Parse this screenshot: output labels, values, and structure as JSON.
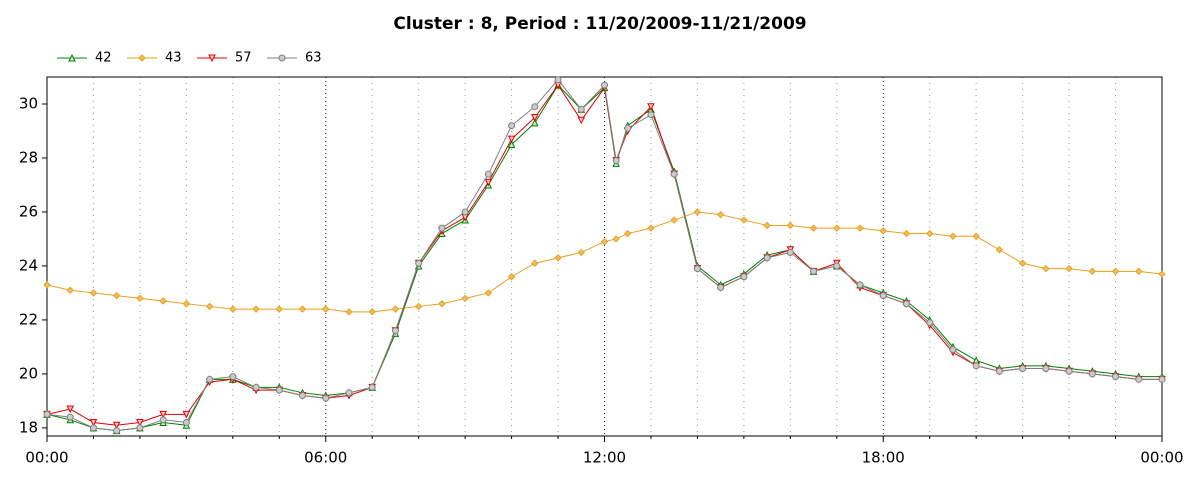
{
  "chart_data": {
    "type": "line",
    "title": "Cluster : 8, Period : 11/20/2009-11/21/2009",
    "x": [
      0,
      0.5,
      1,
      1.5,
      2,
      2.5,
      3,
      3.5,
      4,
      4.5,
      5,
      5.5,
      6,
      6.5,
      7,
      7.5,
      8,
      8.5,
      9,
      9.5,
      10,
      10.5,
      11,
      11.5,
      12,
      12.25,
      12.5,
      13,
      13.5,
      14,
      14.5,
      15,
      15.5,
      16,
      16.5,
      17,
      17.5,
      18,
      18.5,
      19,
      19.5,
      20,
      20.5,
      21,
      21.5,
      22,
      22.5,
      23,
      23.5,
      24
    ],
    "series": [
      {
        "name": "42",
        "color": "#008000",
        "marker": "triangle-up",
        "values": [
          18.5,
          18.3,
          18.0,
          17.9,
          18.0,
          18.2,
          18.1,
          19.8,
          19.8,
          19.5,
          19.5,
          19.3,
          19.2,
          19.3,
          19.5,
          21.5,
          24.0,
          25.2,
          25.7,
          27.0,
          28.5,
          29.3,
          30.7,
          29.8,
          30.6,
          27.8,
          29.2,
          29.8,
          27.5,
          24.0,
          23.3,
          23.7,
          24.4,
          24.6,
          23.8,
          24.0,
          23.3,
          23.0,
          22.7,
          22.0,
          21.0,
          20.5,
          20.2,
          20.3,
          20.3,
          20.2,
          20.1,
          20.0,
          19.9,
          19.9
        ]
      },
      {
        "name": "43",
        "color": "#e8a020",
        "marker": "diamond",
        "values": [
          23.3,
          23.1,
          23.0,
          22.9,
          22.8,
          22.7,
          22.6,
          22.5,
          22.4,
          22.4,
          22.4,
          22.4,
          22.4,
          22.3,
          22.3,
          22.4,
          22.5,
          22.6,
          22.8,
          23.0,
          23.6,
          24.1,
          24.3,
          24.5,
          24.9,
          25.0,
          25.2,
          25.4,
          25.7,
          26.0,
          25.9,
          25.7,
          25.5,
          25.5,
          25.4,
          25.4,
          25.4,
          25.3,
          25.2,
          25.2,
          25.1,
          25.1,
          24.6,
          24.1,
          23.9,
          23.9,
          23.8,
          23.8,
          23.8,
          23.7
        ]
      },
      {
        "name": "57",
        "color": "#e00000",
        "marker": "triangle-down",
        "values": [
          18.5,
          18.7,
          18.2,
          18.1,
          18.2,
          18.5,
          18.5,
          19.7,
          19.8,
          19.4,
          19.4,
          19.2,
          19.1,
          19.2,
          19.5,
          21.6,
          24.1,
          25.3,
          25.8,
          27.1,
          28.7,
          29.5,
          30.7,
          29.4,
          30.6,
          27.9,
          29.0,
          29.9,
          27.4,
          23.9,
          23.2,
          23.6,
          24.3,
          24.6,
          23.8,
          24.1,
          23.2,
          22.9,
          22.6,
          21.8,
          20.8,
          20.3,
          20.1,
          20.2,
          20.2,
          20.1,
          20.0,
          19.9,
          19.8,
          19.8
        ]
      },
      {
        "name": "63",
        "color": "#808080",
        "marker": "circle",
        "values": [
          18.5,
          18.4,
          18.0,
          17.9,
          18.0,
          18.3,
          18.2,
          19.8,
          19.9,
          19.5,
          19.4,
          19.2,
          19.1,
          19.3,
          19.5,
          21.6,
          24.1,
          25.4,
          26.0,
          27.4,
          29.2,
          29.9,
          30.9,
          29.8,
          30.7,
          27.9,
          29.1,
          29.6,
          27.4,
          23.9,
          23.2,
          23.6,
          24.3,
          24.5,
          23.8,
          24.0,
          23.3,
          22.9,
          22.6,
          21.9,
          20.9,
          20.3,
          20.1,
          20.2,
          20.2,
          20.1,
          20.0,
          19.9,
          19.8,
          19.8
        ]
      }
    ],
    "xlim": [
      0,
      24
    ],
    "xticks": [
      {
        "value": 0,
        "label": "00:00"
      },
      {
        "value": 6,
        "label": "06:00"
      },
      {
        "value": 12,
        "label": "12:00"
      },
      {
        "value": 18,
        "label": "18:00"
      },
      {
        "value": 24,
        "label": "00:00"
      }
    ],
    "xminorticks": [
      1,
      2,
      3,
      4,
      5,
      7,
      8,
      9,
      10,
      11,
      13,
      14,
      15,
      16,
      17,
      19,
      20,
      21,
      22,
      23
    ],
    "ylim": [
      17.7,
      31
    ],
    "yticks": [
      18,
      20,
      22,
      24,
      26,
      28,
      30
    ],
    "grid": true,
    "legend": "top-left"
  }
}
